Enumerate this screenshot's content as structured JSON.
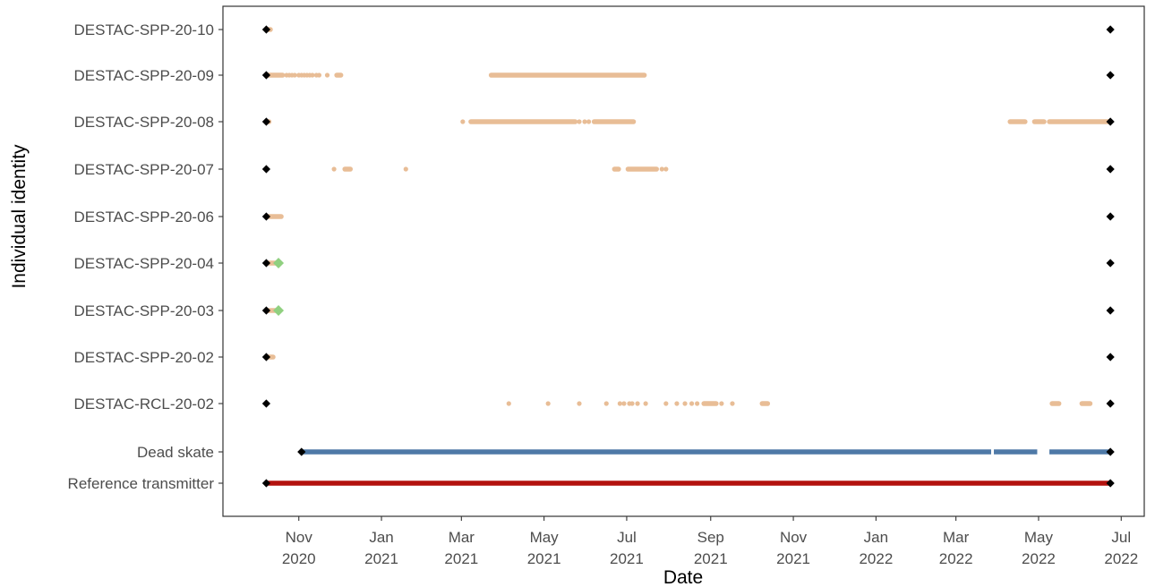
{
  "chart_data": {
    "type": "scatter",
    "xlabel": "Date",
    "ylabel": "Individual identity",
    "xlim": [
      "2020-09-06",
      "2022-07-18"
    ],
    "x_ticks": [
      {
        "date": "2020-11-01",
        "month": "Nov",
        "year": "2020"
      },
      {
        "date": "2021-01-01",
        "month": "Jan",
        "year": "2021"
      },
      {
        "date": "2021-03-01",
        "month": "Mar",
        "year": "2021"
      },
      {
        "date": "2021-05-01",
        "month": "May",
        "year": "2021"
      },
      {
        "date": "2021-07-01",
        "month": "Jul",
        "year": "2021"
      },
      {
        "date": "2021-09-01",
        "month": "Sep",
        "year": "2021"
      },
      {
        "date": "2021-11-01",
        "month": "Nov",
        "year": "2021"
      },
      {
        "date": "2022-01-01",
        "month": "Jan",
        "year": "2022"
      },
      {
        "date": "2022-03-01",
        "month": "Mar",
        "year": "2022"
      },
      {
        "date": "2022-05-01",
        "month": "May",
        "year": "2022"
      },
      {
        "date": "2022-07-01",
        "month": "Jul",
        "year": "2022"
      }
    ],
    "categories": [
      "DESTAC-SPP-20-10",
      "DESTAC-SPP-20-09",
      "DESTAC-SPP-20-08",
      "DESTAC-SPP-20-07",
      "DESTAC-SPP-20-06",
      "DESTAC-SPP-20-04",
      "DESTAC-SPP-20-03",
      "DESTAC-SPP-20-02",
      "DESTAC-RCL-20-02",
      "Dead skate",
      "Reference transmitter"
    ],
    "grid": false,
    "legend": "none",
    "colors": {
      "detection": "#e8bd96",
      "dead_skate": "#4e79a7",
      "reference": "#b3120e",
      "marker": "#000000",
      "end_event": "#90d080"
    },
    "tag_dates": {
      "DESTAC-SPP-20-10": "2020-10-08",
      "DESTAC-SPP-20-09": "2020-10-08",
      "DESTAC-SPP-20-08": "2020-10-08",
      "DESTAC-SPP-20-07": "2020-10-08",
      "DESTAC-SPP-20-06": "2020-10-08",
      "DESTAC-SPP-20-04": "2020-10-08",
      "DESTAC-SPP-20-03": "2020-10-08",
      "DESTAC-SPP-20-02": "2020-10-08",
      "DESTAC-RCL-20-02": "2020-10-08",
      "Dead skate": "2020-11-03",
      "Reference transmitter": "2020-10-08"
    },
    "end_date": "2022-06-23",
    "end_events": [
      {
        "id": "DESTAC-SPP-20-04",
        "date": "2020-10-17"
      },
      {
        "id": "DESTAC-SPP-20-03",
        "date": "2020-10-17"
      }
    ],
    "detection_series": [
      {
        "id": "DESTAC-SPP-20-10",
        "segments": [
          [
            "2020-10-08",
            "2020-10-11"
          ]
        ],
        "points": []
      },
      {
        "id": "DESTAC-SPP-20-09",
        "segments": [
          [
            "2020-10-08",
            "2020-10-20"
          ],
          [
            "2020-11-29",
            "2020-12-02"
          ],
          [
            "2021-03-23",
            "2021-07-14"
          ]
        ],
        "points": [
          "2020-10-23",
          "2020-10-25",
          "2020-10-27",
          "2020-10-29",
          "2020-11-01",
          "2020-11-03",
          "2020-11-05",
          "2020-11-07",
          "2020-11-09",
          "2020-11-11",
          "2020-11-14",
          "2020-11-16",
          "2020-11-22"
        ]
      },
      {
        "id": "DESTAC-SPP-20-08",
        "segments": [
          [
            "2020-10-08",
            "2020-10-10"
          ],
          [
            "2021-03-08",
            "2021-05-24"
          ],
          [
            "2021-06-07",
            "2021-07-06"
          ],
          [
            "2022-04-10",
            "2022-04-21"
          ],
          [
            "2022-04-28",
            "2022-05-05"
          ],
          [
            "2022-05-09",
            "2022-06-23"
          ]
        ],
        "points": [
          "2021-03-02",
          "2021-05-27",
          "2021-05-31",
          "2021-06-03"
        ]
      },
      {
        "id": "DESTAC-SPP-20-07",
        "segments": [
          [
            "2020-12-05",
            "2020-12-09"
          ],
          [
            "2021-06-22",
            "2021-06-25"
          ],
          [
            "2021-07-02",
            "2021-07-23"
          ]
        ],
        "points": [
          "2020-11-27",
          "2021-01-19",
          "2021-07-27",
          "2021-07-30"
        ]
      },
      {
        "id": "DESTAC-SPP-20-06",
        "segments": [
          [
            "2020-10-08",
            "2020-10-19"
          ]
        ],
        "points": []
      },
      {
        "id": "DESTAC-SPP-20-04",
        "segments": [
          [
            "2020-10-08",
            "2020-10-17"
          ]
        ],
        "points": []
      },
      {
        "id": "DESTAC-SPP-20-03",
        "segments": [
          [
            "2020-10-08",
            "2020-10-17"
          ]
        ],
        "points": []
      },
      {
        "id": "DESTAC-SPP-20-02",
        "segments": [
          [
            "2020-10-08",
            "2020-10-13"
          ]
        ],
        "points": []
      },
      {
        "id": "DESTAC-RCL-20-02",
        "segments": [
          [
            "2021-08-27",
            "2021-09-05"
          ],
          [
            "2021-10-09",
            "2021-10-13"
          ],
          [
            "2022-05-11",
            "2022-05-16"
          ],
          [
            "2022-06-02",
            "2022-06-08"
          ]
        ],
        "points": [
          "2021-04-05",
          "2021-05-04",
          "2021-05-27",
          "2021-06-16",
          "2021-06-26",
          "2021-06-29",
          "2021-07-03",
          "2021-07-05",
          "2021-07-09",
          "2021-07-15",
          "2021-07-30",
          "2021-08-07",
          "2021-08-13",
          "2021-08-18",
          "2021-08-22",
          "2021-09-09",
          "2021-09-17"
        ]
      }
    ],
    "dead_skate_segments": [
      [
        "2020-11-03",
        "2022-03-27"
      ],
      [
        "2022-03-29",
        "2022-04-30"
      ],
      [
        "2022-05-09",
        "2022-06-23"
      ]
    ],
    "reference_segments": [
      [
        "2020-10-08",
        "2022-06-23"
      ]
    ]
  }
}
